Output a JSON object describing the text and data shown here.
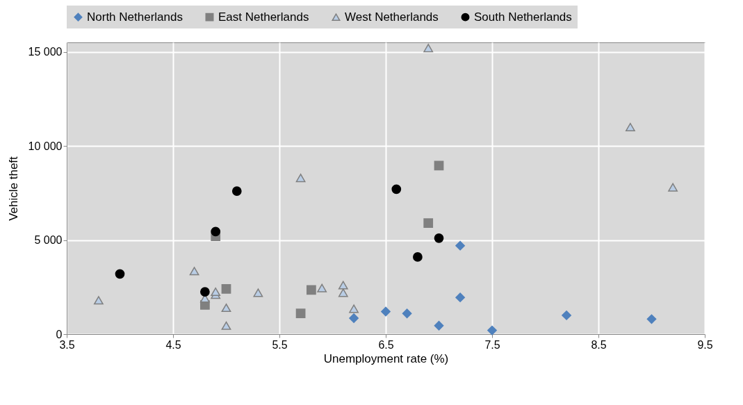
{
  "chart_data": {
    "type": "scatter",
    "xlabel": "Unemployment rate (%)",
    "ylabel": "Vehicle theft",
    "xlim": [
      3.5,
      9.5
    ],
    "xticks": [
      3.5,
      4.5,
      5.5,
      6.5,
      7.5,
      8.5,
      9.5
    ],
    "ylim": [
      0,
      15500
    ],
    "yticks": [
      0,
      {
        "value": 5000,
        "label": "5 000"
      },
      {
        "value": 10000,
        "label": "10 000"
      },
      {
        "value": 15000,
        "label": "15 000"
      }
    ],
    "grid": true,
    "legend": "top",
    "series": [
      {
        "name": "North Netherlands",
        "color": "#4f81bd",
        "marker": "diamond",
        "x": [
          6.2,
          6.5,
          6.7,
          7.0,
          7.2,
          7.2,
          7.5,
          8.2,
          9.0
        ],
        "values": [
          850,
          1200,
          1100,
          450,
          1950,
          4700,
          200,
          1000,
          800
        ]
      },
      {
        "name": "East Netherlands",
        "color": "#808080",
        "marker": "square",
        "x": [
          4.8,
          4.9,
          5.0,
          5.7,
          5.8,
          6.9,
          7.0
        ],
        "values": [
          1550,
          5200,
          2400,
          1100,
          2350,
          5900,
          8950
        ]
      },
      {
        "name": "West Netherlands",
        "color": "#b9cde5",
        "marker": "triangle",
        "x": [
          3.8,
          4.7,
          4.8,
          4.9,
          4.9,
          5.0,
          5.0,
          5.3,
          5.7,
          5.9,
          6.1,
          6.1,
          6.2,
          6.9,
          8.8,
          9.2
        ],
        "values": [
          1800,
          3350,
          1900,
          2100,
          2250,
          1400,
          450,
          2200,
          8300,
          2450,
          2600,
          2200,
          1350,
          15200,
          11000,
          7800
        ]
      },
      {
        "name": "South Netherlands",
        "color": "#000000",
        "marker": "circle",
        "x": [
          4.0,
          4.8,
          4.9,
          5.1,
          6.6,
          6.8,
          7.0
        ],
        "values": [
          3200,
          2250,
          5450,
          7600,
          7700,
          4100,
          5100
        ]
      }
    ]
  }
}
